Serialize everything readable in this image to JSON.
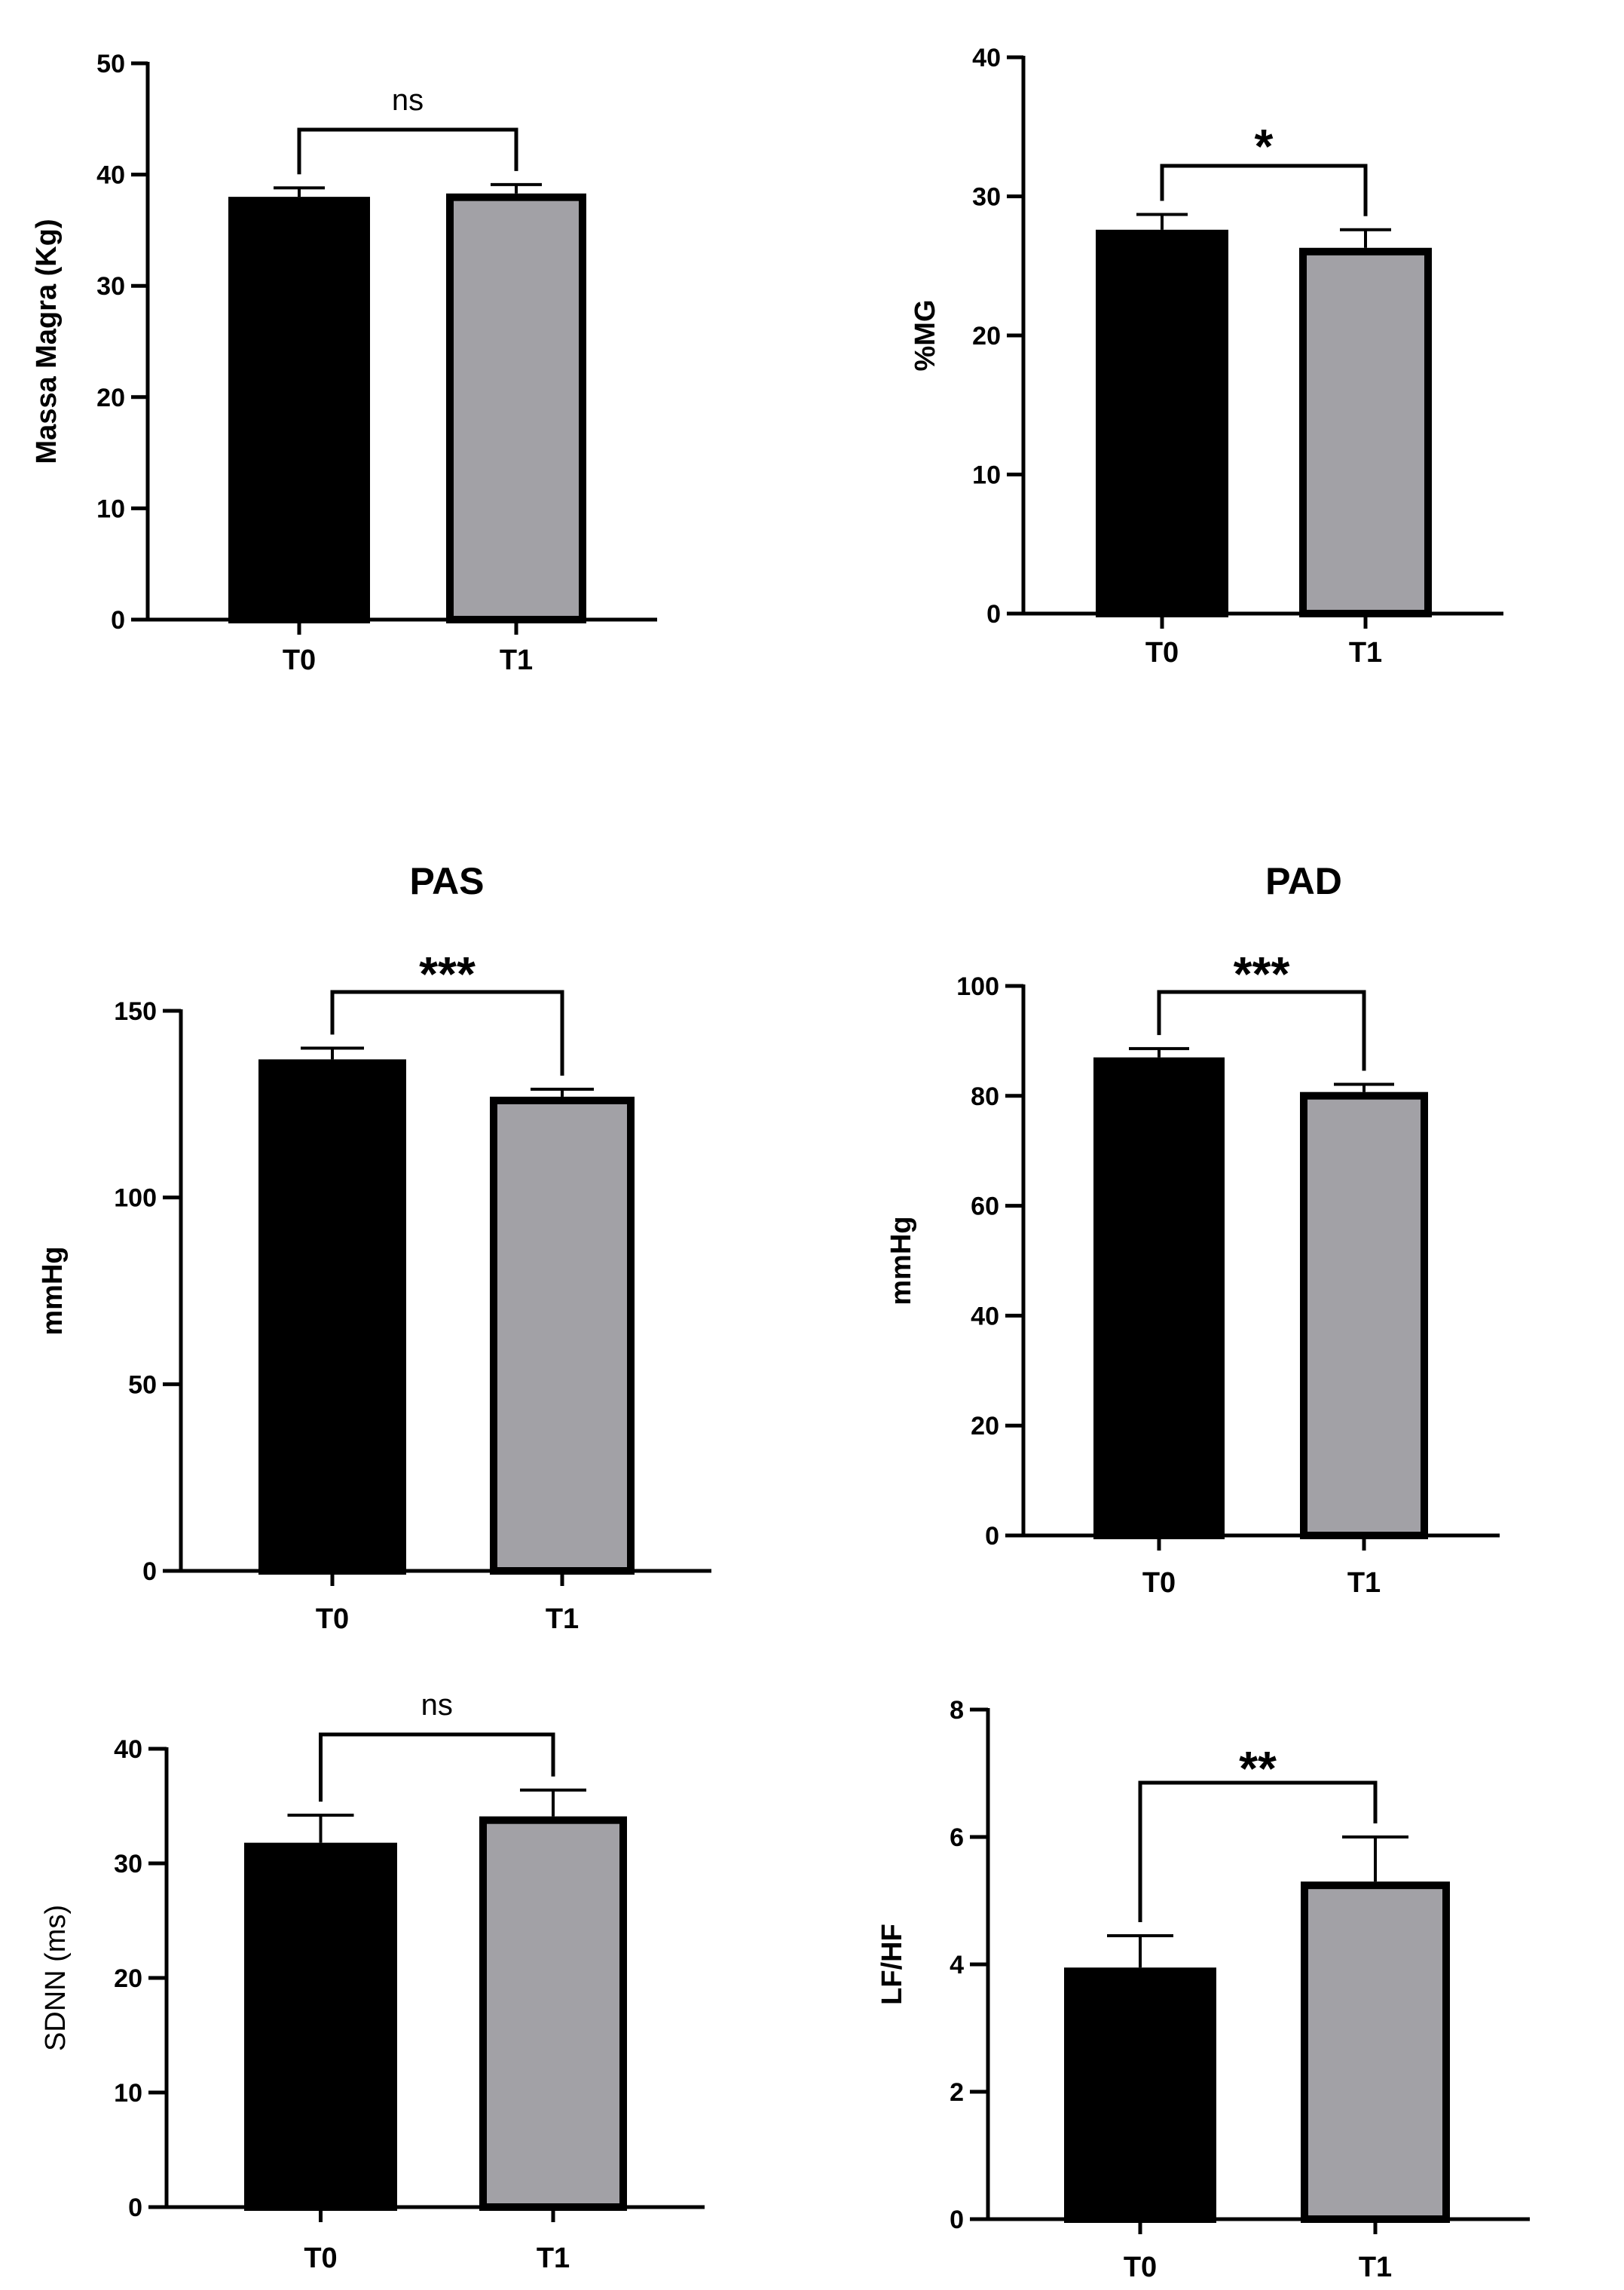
{
  "chart_data": [
    {
      "type": "bar",
      "title": "",
      "ylabel": "Massa Magra (Kg)",
      "categories": [
        "T0",
        "T1"
      ],
      "values": [
        38.0,
        38.3
      ],
      "errors": [
        0.8,
        0.8
      ],
      "ylim": [
        0,
        50
      ],
      "yticks": [
        0,
        10,
        20,
        30,
        40,
        50
      ],
      "significance": "ns",
      "colors": [
        "#000000",
        "#a2a1a6"
      ]
    },
    {
      "type": "bar",
      "title": "",
      "ylabel": "%MG",
      "categories": [
        "T0",
        "T1"
      ],
      "values": [
        27.6,
        26.3
      ],
      "errors": [
        1.1,
        1.3
      ],
      "ylim": [
        0,
        40
      ],
      "yticks": [
        0,
        10,
        20,
        30,
        40
      ],
      "significance": "*",
      "colors": [
        "#000000",
        "#a2a1a6"
      ]
    },
    {
      "type": "bar",
      "title": "PAS",
      "ylabel": "mmHg",
      "categories": [
        "T0",
        "T1"
      ],
      "values": [
        137,
        127
      ],
      "errors": [
        3,
        2
      ],
      "ylim": [
        0,
        150
      ],
      "yticks": [
        0,
        50,
        100,
        150
      ],
      "significance": "***",
      "colors": [
        "#000000",
        "#a2a1a6"
      ]
    },
    {
      "type": "bar",
      "title": "PAD",
      "ylabel": "mmHg",
      "categories": [
        "T0",
        "T1"
      ],
      "values": [
        87,
        80.7
      ],
      "errors": [
        1.6,
        1.4
      ],
      "ylim": [
        0,
        100
      ],
      "yticks": [
        0,
        20,
        40,
        60,
        80,
        100
      ],
      "significance": "***",
      "colors": [
        "#000000",
        "#a2a1a6"
      ]
    },
    {
      "type": "bar",
      "title": "",
      "ylabel": "SDNN (ms)",
      "categories": [
        "T0",
        "T1"
      ],
      "values": [
        31.8,
        34.1
      ],
      "errors": [
        2.4,
        2.3
      ],
      "ylim": [
        0,
        40
      ],
      "yticks": [
        0,
        10,
        20,
        30,
        40
      ],
      "significance": "ns",
      "colors": [
        "#000000",
        "#a2a1a6"
      ]
    },
    {
      "type": "bar",
      "title": "",
      "ylabel": "LF/HF",
      "categories": [
        "T0",
        "T1"
      ],
      "values": [
        3.95,
        5.3
      ],
      "errors": [
        0.5,
        0.7
      ],
      "ylim": [
        0,
        8
      ],
      "yticks": [
        0,
        2,
        4,
        6,
        8
      ],
      "significance": "**",
      "colors": [
        "#000000",
        "#a2a1a6"
      ]
    }
  ]
}
